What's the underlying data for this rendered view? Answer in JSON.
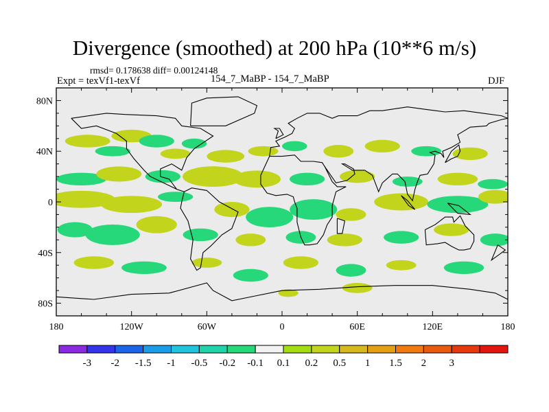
{
  "chart_data": {
    "type": "heatmap",
    "title": "Divergence (smoothed) at 200 hPa (10**6 m/s)",
    "stats": "rmsd= 0.178638 diff= 0.00124148",
    "expt": "Expt = texVf1-texVf",
    "runs": "154_7_MaBP - 154_7_MaBP",
    "season": "DJF",
    "xlim": [
      -180,
      180
    ],
    "ylim": [
      -90,
      90
    ],
    "x_ticks": [
      {
        "value": -180,
        "label": "180"
      },
      {
        "value": -120,
        "label": "120W"
      },
      {
        "value": -60,
        "label": "60W"
      },
      {
        "value": 0,
        "label": "0"
      },
      {
        "value": 60,
        "label": "60E"
      },
      {
        "value": 120,
        "label": "120E"
      },
      {
        "value": 180,
        "label": "180"
      }
    ],
    "y_ticks": [
      {
        "value": 80,
        "label": "80N"
      },
      {
        "value": 40,
        "label": "40N"
      },
      {
        "value": 0,
        "label": "0"
      },
      {
        "value": -40,
        "label": "40S"
      },
      {
        "value": -80,
        "label": "80S"
      }
    ],
    "colorbar": {
      "colors": [
        "#8a2be2",
        "#3434e8",
        "#1e64e6",
        "#1b9ce6",
        "#22c3dc",
        "#21d3a8",
        "#26d87a",
        "#f2f2f2",
        "#a5dd14",
        "#c3d41c",
        "#d6b81f",
        "#e3a014",
        "#f07a0f",
        "#e85a10",
        "#e63a0e",
        "#e0170e"
      ],
      "labels": [
        "-3",
        "-2",
        "-1.5",
        "-1",
        "-0.5",
        "-0.2",
        "-0.1",
        "0.1",
        "0.2",
        "0.5",
        "1",
        "1.5",
        "2",
        "3"
      ]
    },
    "features": [
      {
        "lon": -155,
        "lat": 48,
        "rx": 18,
        "ry": 5,
        "v": 0.2
      },
      {
        "lon": -135,
        "lat": 40,
        "rx": 14,
        "ry": 4,
        "v": -0.2
      },
      {
        "lon": -120,
        "lat": 52,
        "rx": 16,
        "ry": 5,
        "v": 0.2
      },
      {
        "lon": -100,
        "lat": 48,
        "rx": 14,
        "ry": 5,
        "v": -0.2
      },
      {
        "lon": -85,
        "lat": 38,
        "rx": 12,
        "ry": 4,
        "v": 0.2
      },
      {
        "lon": -70,
        "lat": 46,
        "rx": 10,
        "ry": 4,
        "v": -0.2
      },
      {
        "lon": -45,
        "lat": 36,
        "rx": 15,
        "ry": 5,
        "v": 0.2
      },
      {
        "lon": -15,
        "lat": 40,
        "rx": 12,
        "ry": 4,
        "v": 0.2
      },
      {
        "lon": 10,
        "lat": 44,
        "rx": 10,
        "ry": 4,
        "v": -0.2
      },
      {
        "lon": 45,
        "lat": 40,
        "rx": 12,
        "ry": 5,
        "v": 0.2
      },
      {
        "lon": 80,
        "lat": 44,
        "rx": 14,
        "ry": 5,
        "v": 0.2
      },
      {
        "lon": 115,
        "lat": 40,
        "rx": 12,
        "ry": 4,
        "v": -0.2
      },
      {
        "lon": 150,
        "lat": 38,
        "rx": 14,
        "ry": 5,
        "v": 0.2
      },
      {
        "lon": -160,
        "lat": 18,
        "rx": 20,
        "ry": 5,
        "v": -0.2
      },
      {
        "lon": -130,
        "lat": 22,
        "rx": 18,
        "ry": 6,
        "v": 0.2
      },
      {
        "lon": -95,
        "lat": 20,
        "rx": 14,
        "ry": 5,
        "v": -0.2
      },
      {
        "lon": -55,
        "lat": 20,
        "rx": 18,
        "ry": 6,
        "v": 0.5
      },
      {
        "lon": -20,
        "lat": 18,
        "rx": 14,
        "ry": 5,
        "v": 0.5
      },
      {
        "lon": 20,
        "lat": 18,
        "rx": 14,
        "ry": 5,
        "v": -0.2
      },
      {
        "lon": 60,
        "lat": 20,
        "rx": 14,
        "ry": 5,
        "v": 0.2
      },
      {
        "lon": 100,
        "lat": 16,
        "rx": 12,
        "ry": 4,
        "v": -0.2
      },
      {
        "lon": 140,
        "lat": 18,
        "rx": 16,
        "ry": 5,
        "v": 0.2
      },
      {
        "lon": 168,
        "lat": 14,
        "rx": 12,
        "ry": 4,
        "v": -0.2
      },
      {
        "lon": -160,
        "lat": 2,
        "rx": 20,
        "ry": 5,
        "v": 0.5
      },
      {
        "lon": -120,
        "lat": -2,
        "rx": 18,
        "ry": 5,
        "v": 0.5
      },
      {
        "lon": -85,
        "lat": 4,
        "rx": 14,
        "ry": 4,
        "v": -0.2
      },
      {
        "lon": -40,
        "lat": -6,
        "rx": 14,
        "ry": 6,
        "v": 0.2
      },
      {
        "lon": -10,
        "lat": -12,
        "rx": 14,
        "ry": 6,
        "v": -0.5
      },
      {
        "lon": 25,
        "lat": -6,
        "rx": 14,
        "ry": 6,
        "v": -0.5
      },
      {
        "lon": 55,
        "lat": -10,
        "rx": 12,
        "ry": 5,
        "v": 0.2
      },
      {
        "lon": 95,
        "lat": 0,
        "rx": 16,
        "ry": 5,
        "v": 0.5
      },
      {
        "lon": 140,
        "lat": -2,
        "rx": 18,
        "ry": 5,
        "v": -0.5
      },
      {
        "lon": 170,
        "lat": 4,
        "rx": 10,
        "ry": 4,
        "v": 0.5
      },
      {
        "lon": -165,
        "lat": -22,
        "rx": 14,
        "ry": 6,
        "v": -0.2
      },
      {
        "lon": -135,
        "lat": -26,
        "rx": 16,
        "ry": 6,
        "v": -0.5
      },
      {
        "lon": -100,
        "lat": -18,
        "rx": 12,
        "ry": 5,
        "v": 0.5
      },
      {
        "lon": -65,
        "lat": -26,
        "rx": 14,
        "ry": 5,
        "v": -0.2
      },
      {
        "lon": -25,
        "lat": -30,
        "rx": 12,
        "ry": 5,
        "v": 0.2
      },
      {
        "lon": 15,
        "lat": -28,
        "rx": 12,
        "ry": 5,
        "v": -0.2
      },
      {
        "lon": 50,
        "lat": -30,
        "rx": 14,
        "ry": 5,
        "v": 0.2
      },
      {
        "lon": 95,
        "lat": -28,
        "rx": 14,
        "ry": 5,
        "v": -0.2
      },
      {
        "lon": 135,
        "lat": -22,
        "rx": 14,
        "ry": 5,
        "v": 0.2
      },
      {
        "lon": 170,
        "lat": -30,
        "rx": 12,
        "ry": 5,
        "v": -0.2
      },
      {
        "lon": -150,
        "lat": -48,
        "rx": 16,
        "ry": 5,
        "v": 0.2
      },
      {
        "lon": -110,
        "lat": -52,
        "rx": 18,
        "ry": 5,
        "v": -0.2
      },
      {
        "lon": -60,
        "lat": -48,
        "rx": 12,
        "ry": 4,
        "v": 0.2
      },
      {
        "lon": -25,
        "lat": -58,
        "rx": 14,
        "ry": 5,
        "v": -0.2
      },
      {
        "lon": 15,
        "lat": -48,
        "rx": 14,
        "ry": 5,
        "v": 0.2
      },
      {
        "lon": 55,
        "lat": -54,
        "rx": 12,
        "ry": 5,
        "v": -0.2
      },
      {
        "lon": 95,
        "lat": -50,
        "rx": 12,
        "ry": 4,
        "v": 0.2
      },
      {
        "lon": 145,
        "lat": -52,
        "rx": 16,
        "ry": 5,
        "v": -0.2
      },
      {
        "lon": 60,
        "lat": -68,
        "rx": 12,
        "ry": 4,
        "v": 0.2
      },
      {
        "lon": 5,
        "lat": -72,
        "rx": 8,
        "ry": 3,
        "v": 0.2
      }
    ],
    "coastlines": [
      [
        [
          -168,
          66
        ],
        [
          -140,
          70
        ],
        [
          -125,
          69
        ],
        [
          -100,
          68
        ],
        [
          -85,
          66
        ],
        [
          -80,
          60
        ],
        [
          -65,
          58
        ],
        [
          -55,
          52
        ],
        [
          -64,
          46
        ],
        [
          -70,
          42
        ],
        [
          -76,
          35
        ],
        [
          -80,
          25
        ],
        [
          -88,
          30
        ],
        [
          -97,
          26
        ],
        [
          -97,
          20
        ],
        [
          -90,
          18
        ],
        [
          -84,
          10
        ],
        [
          -78,
          8
        ],
        [
          -80,
          0
        ],
        [
          -81,
          -5
        ],
        [
          -75,
          -15
        ],
        [
          -71,
          -30
        ],
        [
          -73,
          -45
        ],
        [
          -68,
          -54
        ],
        [
          -65,
          -52
        ],
        [
          -63,
          -40
        ],
        [
          -57,
          -35
        ],
        [
          -48,
          -26
        ],
        [
          -40,
          -21
        ],
        [
          -35,
          -8
        ],
        [
          -50,
          0
        ],
        [
          -60,
          9
        ],
        [
          -72,
          11
        ],
        [
          -78,
          8
        ]
      ],
      [
        [
          -84,
          10
        ],
        [
          -105,
          20
        ],
        [
          -110,
          25
        ],
        [
          -118,
          34
        ],
        [
          -124,
          42
        ],
        [
          -124,
          48
        ],
        [
          -132,
          54
        ],
        [
          -148,
          60
        ],
        [
          -160,
          58
        ],
        [
          -168,
          66
        ]
      ],
      [
        [
          -10,
          36
        ],
        [
          -9,
          43
        ],
        [
          -2,
          44
        ],
        [
          -5,
          48
        ],
        [
          2,
          51
        ],
        [
          8,
          54
        ],
        [
          10,
          58
        ],
        [
          5,
          62
        ],
        [
          12,
          66
        ],
        [
          20,
          70
        ],
        [
          30,
          70
        ],
        [
          40,
          66
        ],
        [
          45,
          68
        ],
        [
          60,
          68
        ],
        [
          70,
          72
        ],
        [
          80,
          72
        ],
        [
          100,
          75
        ],
        [
          115,
          73
        ],
        [
          130,
          71
        ],
        [
          145,
          72
        ],
        [
          160,
          70
        ],
        [
          175,
          68
        ],
        [
          180,
          66
        ]
      ],
      [
        [
          -10,
          36
        ],
        [
          -17,
          21
        ],
        [
          -17,
          14
        ],
        [
          -12,
          7
        ],
        [
          -5,
          5
        ],
        [
          4,
          6
        ],
        [
          9,
          4
        ],
        [
          10,
          0
        ],
        [
          12,
          -5
        ],
        [
          12,
          -16
        ],
        [
          15,
          -28
        ],
        [
          18,
          -34
        ],
        [
          22,
          -34
        ],
        [
          28,
          -33
        ],
        [
          33,
          -26
        ],
        [
          36,
          -18
        ],
        [
          40,
          -12
        ],
        [
          40,
          -3
        ],
        [
          43,
          8
        ],
        [
          51,
          12
        ],
        [
          44,
          12
        ],
        [
          40,
          16
        ],
        [
          34,
          28
        ],
        [
          32,
          31
        ],
        [
          25,
          32
        ],
        [
          15,
          32
        ],
        [
          10,
          37
        ],
        [
          0,
          36
        ],
        [
          -10,
          36
        ]
      ],
      [
        [
          34,
          28
        ],
        [
          43,
          15
        ],
        [
          52,
          17
        ],
        [
          58,
          22
        ],
        [
          57,
          26
        ],
        [
          50,
          30
        ],
        [
          48,
          30
        ],
        [
          56,
          25
        ],
        [
          60,
          25
        ],
        [
          66,
          25
        ],
        [
          72,
          21
        ],
        [
          77,
          8
        ],
        [
          80,
          15
        ],
        [
          88,
          22
        ],
        [
          92,
          22
        ],
        [
          98,
          16
        ],
        [
          100,
          6
        ],
        [
          104,
          1
        ],
        [
          106,
          10
        ],
        [
          108,
          16
        ],
        [
          110,
          21
        ],
        [
          116,
          22
        ],
        [
          121,
          30
        ],
        [
          122,
          37
        ],
        [
          118,
          39
        ],
        [
          122,
          40
        ],
        [
          127,
          38
        ],
        [
          129,
          35
        ],
        [
          128,
          40
        ],
        [
          135,
          43
        ],
        [
          142,
          47
        ],
        [
          140,
          53
        ],
        [
          150,
          59
        ],
        [
          163,
          60
        ],
        [
          165,
          62
        ],
        [
          175,
          65
        ],
        [
          180,
          66
        ]
      ],
      [
        [
          114,
          -22
        ],
        [
          122,
          -18
        ],
        [
          130,
          -12
        ],
        [
          136,
          -12
        ],
        [
          137,
          -16
        ],
        [
          142,
          -11
        ],
        [
          146,
          -19
        ],
        [
          153,
          -26
        ],
        [
          153,
          -31
        ],
        [
          150,
          -37
        ],
        [
          145,
          -38
        ],
        [
          141,
          -38
        ],
        [
          135,
          -35
        ],
        [
          130,
          -32
        ],
        [
          124,
          -33
        ],
        [
          115,
          -34
        ],
        [
          114,
          -22
        ]
      ],
      [
        [
          -180,
          -75
        ],
        [
          -150,
          -77
        ],
        [
          -120,
          -73
        ],
        [
          -90,
          -72
        ],
        [
          -60,
          -64
        ],
        [
          -55,
          -70
        ],
        [
          -40,
          -78
        ],
        [
          -20,
          -74
        ],
        [
          0,
          -70
        ],
        [
          30,
          -69
        ],
        [
          60,
          -67
        ],
        [
          90,
          -66
        ],
        [
          120,
          -66
        ],
        [
          150,
          -69
        ],
        [
          170,
          -72
        ],
        [
          180,
          -77
        ]
      ],
      [
        [
          -73,
          60
        ],
        [
          -45,
          60
        ],
        [
          -22,
          70
        ],
        [
          -20,
          76
        ],
        [
          -35,
          83
        ],
        [
          -60,
          82
        ],
        [
          -72,
          78
        ],
        [
          -73,
          60
        ]
      ],
      [
        [
          -5,
          50
        ],
        [
          -3,
          56
        ],
        [
          -6,
          58
        ],
        [
          -2,
          58
        ],
        [
          1,
          53
        ],
        [
          -5,
          50
        ]
      ],
      [
        [
          44,
          -13
        ],
        [
          50,
          -15
        ],
        [
          48,
          -25
        ],
        [
          44,
          -25
        ],
        [
          44,
          -13
        ]
      ],
      [
        [
          130,
          31
        ],
        [
          135,
          34
        ],
        [
          140,
          36
        ],
        [
          142,
          40
        ],
        [
          141,
          45
        ],
        [
          135,
          40
        ],
        [
          130,
          31
        ]
      ],
      [
        [
          95,
          5
        ],
        [
          100,
          1
        ],
        [
          106,
          -6
        ],
        [
          101,
          -3
        ],
        [
          95,
          5
        ]
      ],
      [
        [
          132,
          -1
        ],
        [
          141,
          -3
        ],
        [
          150,
          -10
        ],
        [
          140,
          -9
        ],
        [
          132,
          -1
        ]
      ],
      [
        [
          172,
          -34
        ],
        [
          178,
          -38
        ],
        [
          174,
          -41
        ],
        [
          167,
          -46
        ],
        [
          172,
          -34
        ]
      ]
    ]
  }
}
